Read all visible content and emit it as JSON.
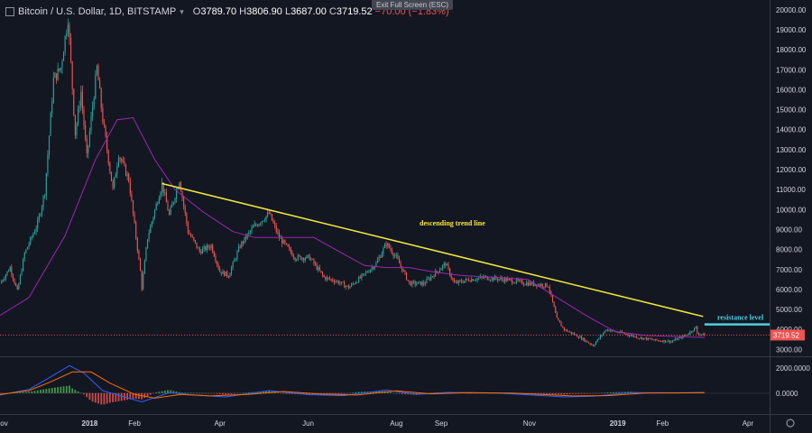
{
  "header": {
    "title": "Bitcoin / U.S. Dollar, 1D, BITSTAMP",
    "open_label": "O",
    "open": "3789.70",
    "high_label": "H",
    "high": "3806.90",
    "low_label": "L",
    "low": "3687.00",
    "close_label": "C",
    "close": "3719.52",
    "change": "−70.00 (−1.83%)",
    "exit_fullscreen": "Exit Full Screen (ESC)"
  },
  "colors": {
    "background": "#131722",
    "up": "#26a69a",
    "down": "#ef5350",
    "ma": "#9c27b0",
    "trendline": "#f5e83a",
    "resistance": "#4dd0e1",
    "price_line": "#ef5350",
    "macd": "#2962ff",
    "signal": "#ff6d00",
    "axis_text": "#d1d4dc"
  },
  "icons": [
    "chart-icon",
    "dropdown-chevron-icon",
    "settings-gear-icon"
  ],
  "chart_data": {
    "type": "candlestick",
    "x_axis": "date",
    "y_scale": "linear",
    "grid": false,
    "ylim": [
      2700,
      20400
    ],
    "xlim": [
      "2017-10-31",
      "2019-04-16"
    ],
    "y_ticks": [
      "20000.00",
      "19000.00",
      "18000.00",
      "17000.00",
      "16000.00",
      "15000.00",
      "14000.00",
      "13000.00",
      "12000.00",
      "11000.00",
      "10000.00",
      "9000.00",
      "8000.00",
      "7000.00",
      "6000.00",
      "5000.00",
      "4000.00",
      "3000.00"
    ],
    "x_ticks": [
      {
        "label": "Nov",
        "date": "2017-11-01"
      },
      {
        "label": "2018",
        "date": "2018-01-01"
      },
      {
        "label": "Feb",
        "date": "2018-02-01"
      },
      {
        "label": "Apr",
        "date": "2018-04-01"
      },
      {
        "label": "Jun",
        "date": "2018-06-01"
      },
      {
        "label": "Aug",
        "date": "2018-08-01"
      },
      {
        "label": "Sep",
        "date": "2018-09-01"
      },
      {
        "label": "Nov",
        "date": "2018-11-01"
      },
      {
        "label": "2019",
        "date": "2019-01-01"
      },
      {
        "label": "Feb",
        "date": "2019-02-01"
      },
      {
        "label": "Apr",
        "date": "2019-04-01"
      }
    ],
    "price_path": [
      [
        "2017-10-31",
        6300
      ],
      [
        "2017-11-07",
        7100
      ],
      [
        "2017-11-12",
        5900
      ],
      [
        "2017-11-17",
        7800
      ],
      [
        "2017-11-26",
        9300
      ],
      [
        "2017-12-01",
        10900
      ],
      [
        "2017-12-07",
        16500
      ],
      [
        "2017-12-12",
        17100
      ],
      [
        "2017-12-17",
        19600
      ],
      [
        "2017-12-22",
        13800
      ],
      [
        "2017-12-26",
        15900
      ],
      [
        "2017-12-30",
        12600
      ],
      [
        "2018-01-06",
        17100
      ],
      [
        "2018-01-10",
        14500
      ],
      [
        "2018-01-17",
        11000
      ],
      [
        "2018-01-21",
        12800
      ],
      [
        "2018-01-28",
        11500
      ],
      [
        "2018-02-05",
        6900
      ],
      [
        "2018-02-06",
        6100
      ],
      [
        "2018-02-10",
        8600
      ],
      [
        "2018-02-20",
        11300
      ],
      [
        "2018-02-25",
        9700
      ],
      [
        "2018-03-04",
        11500
      ],
      [
        "2018-03-10",
        8900
      ],
      [
        "2018-03-18",
        7900
      ],
      [
        "2018-03-26",
        8200
      ],
      [
        "2018-04-01",
        6900
      ],
      [
        "2018-04-07",
        6700
      ],
      [
        "2018-04-15",
        8200
      ],
      [
        "2018-04-24",
        9100
      ],
      [
        "2018-05-05",
        9800
      ],
      [
        "2018-05-12",
        8600
      ],
      [
        "2018-05-23",
        7600
      ],
      [
        "2018-06-02",
        7600
      ],
      [
        "2018-06-12",
        6600
      ],
      [
        "2018-06-21",
        6400
      ],
      [
        "2018-06-29",
        6100
      ],
      [
        "2018-07-09",
        6700
      ],
      [
        "2018-07-18",
        7300
      ],
      [
        "2018-07-25",
        8300
      ],
      [
        "2018-08-01",
        7600
      ],
      [
        "2018-08-10",
        6300
      ],
      [
        "2018-08-20",
        6300
      ],
      [
        "2018-08-26",
        6700
      ],
      [
        "2018-09-04",
        7300
      ],
      [
        "2018-09-10",
        6300
      ],
      [
        "2018-09-20",
        6500
      ],
      [
        "2018-10-01",
        6600
      ],
      [
        "2018-10-15",
        6500
      ],
      [
        "2018-10-31",
        6300
      ],
      [
        "2018-11-14",
        6200
      ],
      [
        "2018-11-20",
        4500
      ],
      [
        "2018-11-25",
        4000
      ],
      [
        "2018-12-06",
        3600
      ],
      [
        "2018-12-15",
        3200
      ],
      [
        "2018-12-24",
        4000
      ],
      [
        "2019-01-05",
        3800
      ],
      [
        "2019-01-15",
        3600
      ],
      [
        "2019-01-28",
        3450
      ],
      [
        "2019-02-07",
        3400
      ],
      [
        "2019-02-17",
        3700
      ],
      [
        "2019-02-24",
        4100
      ],
      [
        "2019-02-25",
        3800
      ],
      [
        "2019-03-02",
        3719.52
      ]
    ],
    "moving_average": [
      [
        "2017-10-31",
        4700
      ],
      [
        "2017-11-20",
        5600
      ],
      [
        "2017-12-15",
        8700
      ],
      [
        "2018-01-05",
        12500
      ],
      [
        "2018-01-20",
        14500
      ],
      [
        "2018-01-31",
        14600
      ],
      [
        "2018-02-15",
        12500
      ],
      [
        "2018-03-01",
        11000
      ],
      [
        "2018-03-20",
        9900
      ],
      [
        "2018-04-10",
        8900
      ],
      [
        "2018-04-25",
        8600
      ],
      [
        "2018-05-15",
        8600
      ],
      [
        "2018-06-05",
        8600
      ],
      [
        "2018-06-25",
        7800
      ],
      [
        "2018-07-10",
        7200
      ],
      [
        "2018-07-25",
        7100
      ],
      [
        "2018-08-10",
        7100
      ],
      [
        "2018-08-25",
        6900
      ],
      [
        "2018-09-15",
        6700
      ],
      [
        "2018-10-10",
        6600
      ],
      [
        "2018-10-31",
        6500
      ],
      [
        "2018-11-20",
        5600
      ],
      [
        "2018-12-10",
        4700
      ],
      [
        "2018-12-30",
        3900
      ],
      [
        "2019-01-20",
        3700
      ],
      [
        "2019-02-10",
        3650
      ],
      [
        "2019-03-02",
        3600
      ]
    ],
    "trend_line": {
      "label": "descending trend line",
      "start": [
        "2018-02-20",
        11300
      ],
      "end": [
        "2019-03-01",
        4650
      ]
    },
    "resistance_level": {
      "label": "resistance level",
      "value": 4250,
      "from": "2019-03-02",
      "to": "2019-04-16"
    },
    "last_price": "3719.52",
    "macd_panel": {
      "y_ticks": [
        "2000.0000",
        "0.0000"
      ],
      "ylim": [
        -1600,
        2800
      ],
      "macd": [
        [
          "2017-10-31",
          -150
        ],
        [
          "2017-11-20",
          300
        ],
        [
          "2017-12-05",
          1300
        ],
        [
          "2017-12-18",
          2200
        ],
        [
          "2017-12-28",
          1600
        ],
        [
          "2018-01-10",
          200
        ],
        [
          "2018-01-25",
          -300
        ],
        [
          "2018-02-06",
          -700
        ],
        [
          "2018-02-25",
          30
        ],
        [
          "2018-03-15",
          -150
        ],
        [
          "2018-04-05",
          -300
        ],
        [
          "2018-05-05",
          200
        ],
        [
          "2018-06-01",
          -120
        ],
        [
          "2018-06-25",
          -200
        ],
        [
          "2018-07-25",
          250
        ],
        [
          "2018-08-15",
          -100
        ],
        [
          "2018-09-05",
          60
        ],
        [
          "2018-10-10",
          0
        ],
        [
          "2018-11-25",
          -300
        ],
        [
          "2018-12-15",
          -250
        ],
        [
          "2019-01-10",
          40
        ],
        [
          "2019-02-10",
          30
        ],
        [
          "2019-03-02",
          60
        ]
      ],
      "signal": [
        [
          "2017-10-31",
          -100
        ],
        [
          "2017-11-20",
          200
        ],
        [
          "2017-12-05",
          900
        ],
        [
          "2017-12-20",
          1700
        ],
        [
          "2018-01-02",
          1700
        ],
        [
          "2018-01-15",
          800
        ],
        [
          "2018-02-01",
          -100
        ],
        [
          "2018-02-15",
          -400
        ],
        [
          "2018-03-05",
          -100
        ],
        [
          "2018-03-25",
          -220
        ],
        [
          "2018-04-20",
          -100
        ],
        [
          "2018-05-15",
          130
        ],
        [
          "2018-06-10",
          -80
        ],
        [
          "2018-07-05",
          -150
        ],
        [
          "2018-08-01",
          180
        ],
        [
          "2018-08-25",
          -60
        ],
        [
          "2018-09-20",
          40
        ],
        [
          "2018-10-20",
          0
        ],
        [
          "2018-12-01",
          -220
        ],
        [
          "2018-12-25",
          -200
        ],
        [
          "2019-01-20",
          0
        ],
        [
          "2019-02-15",
          20
        ],
        [
          "2019-03-02",
          40
        ]
      ]
    }
  }
}
